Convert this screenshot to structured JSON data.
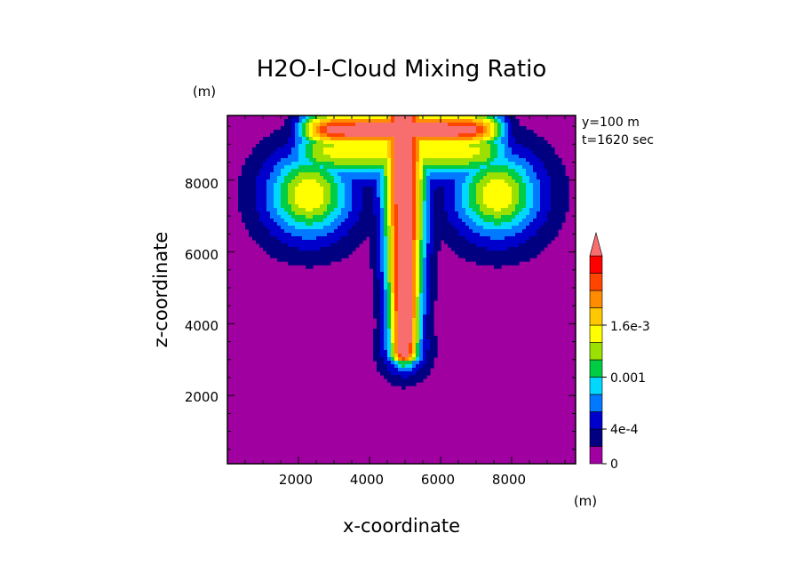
{
  "chart_data": {
    "type": "heatmap",
    "title": "H2O-I-Cloud Mixing Ratio",
    "xlabel": "x-coordinate",
    "ylabel": "z-coordinate",
    "x_unit": "(m)",
    "y_unit": "(m)",
    "annotations": [
      "y=100 m",
      "t=1620 sec"
    ],
    "xlim": [
      0,
      9800
    ],
    "ylim": [
      100,
      9800
    ],
    "x_ticks": [
      "2000",
      "4000",
      "6000",
      "8000"
    ],
    "y_ticks": [
      "2000",
      "4000",
      "6000",
      "8000"
    ],
    "colorbar": {
      "labels": [
        {
          "text": "0",
          "value": 0
        },
        {
          "text": "4e-4",
          "value": 0.0004
        },
        {
          "text": "0.001",
          "value": 0.001
        },
        {
          "text": "1.6e-3",
          "value": 0.0016
        }
      ],
      "levels": [
        0,
        0.0002,
        0.0004,
        0.0006,
        0.0008,
        0.001,
        0.0012,
        0.0014,
        0.0016,
        0.0018,
        0.002
      ],
      "colors": [
        "#a000a0",
        "#000080",
        "#0000cd",
        "#0078ff",
        "#00d8ff",
        "#00cc44",
        "#9be000",
        "#ffff00",
        "#ffc800",
        "#ff8c00",
        "#ff4500",
        "#ff0000",
        "#f86e6e"
      ],
      "extend": "max"
    },
    "grid": false
  },
  "colors": {
    "background": "#a000a0",
    "core": "#f86e6e"
  }
}
